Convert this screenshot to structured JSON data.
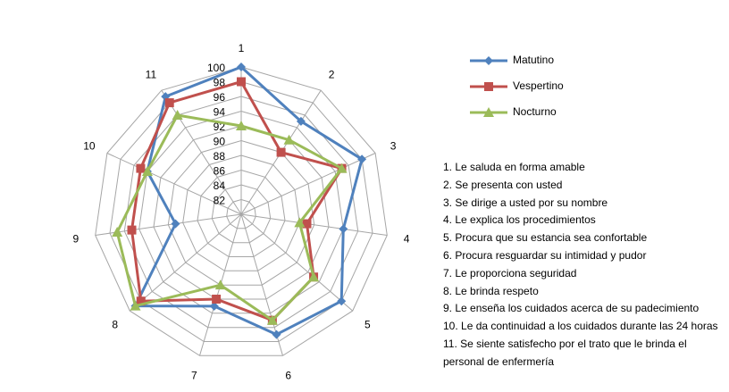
{
  "chart_data": {
    "type": "radar",
    "categories": [
      "1",
      "2",
      "3",
      "4",
      "5",
      "6",
      "7",
      "8",
      "9",
      "10",
      "11"
    ],
    "radial_ticks": [
      "82",
      "84",
      "86",
      "88",
      "90",
      "92",
      "94",
      "96",
      "98",
      "100"
    ],
    "rlim": [
      80,
      100
    ],
    "grid": true,
    "legend_position": "right",
    "series": [
      {
        "name": "Matutino",
        "color": "#4F81BD",
        "marker": "diamond",
        "values": [
          100,
          95,
          98,
          94,
          98,
          97,
          93,
          99,
          89,
          94,
          99
        ]
      },
      {
        "name": "Vespertino",
        "color": "#C0504D",
        "marker": "square",
        "values": [
          98,
          90,
          95,
          89,
          93,
          95,
          92,
          98,
          95,
          95,
          98
        ]
      },
      {
        "name": "Nocturno",
        "color": "#9BBB59",
        "marker": "triangle",
        "values": [
          92,
          92,
          95,
          88,
          93,
          95,
          90,
          99,
          97,
          94,
          96
        ]
      }
    ],
    "notes": [
      "1. Le saluda en forma amable",
      "2. Se presenta con usted",
      "3. Se dirige a usted por su nombre",
      "4. Le explica los procedimientos",
      "5. Procura que su estancia sea confortable",
      "6. Procura resguardar su intimidad y pudor",
      "7. Le proporciona seguridad",
      "8. Le brinda respeto",
      "9. Le enseña los cuidados acerca de su padecimiento",
      "10. Le da continuidad a los cuidados durante las 24 horas",
      "11. Se siente satisfecho  por el trato que le brinda el personal de enfermería"
    ]
  }
}
